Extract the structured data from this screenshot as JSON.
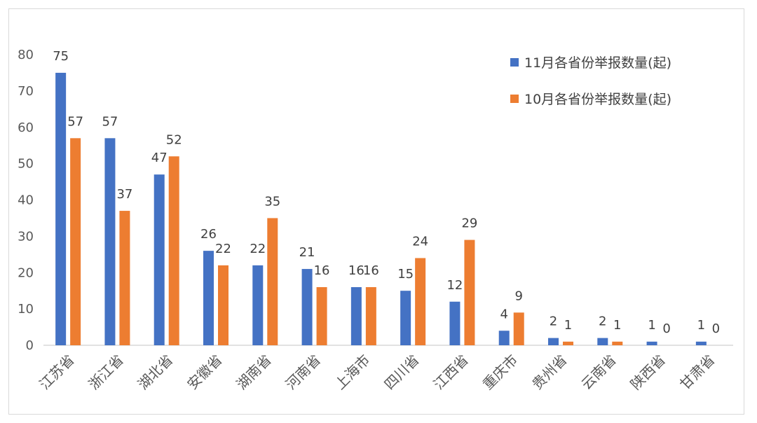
{
  "chart_data": {
    "type": "bar",
    "categories": [
      "江苏省",
      "浙江省",
      "湖北省",
      "安徽省",
      "湖南省",
      "河南省",
      "上海市",
      "四川省",
      "江西省",
      "重庆市",
      "贵州省",
      "云南省",
      "陕西省",
      "甘肃省"
    ],
    "series": [
      {
        "name": "11月各省份举报数量(起)",
        "color": "#4472C4",
        "values": [
          75,
          57,
          47,
          26,
          22,
          21,
          16,
          15,
          12,
          4,
          2,
          2,
          1,
          1
        ]
      },
      {
        "name": "10月各省份举报数量(起)",
        "color": "#ED7D31",
        "values": [
          57,
          37,
          52,
          22,
          35,
          16,
          16,
          24,
          29,
          9,
          1,
          1,
          0,
          0
        ]
      }
    ],
    "yticks": [
      0,
      10,
      20,
      30,
      40,
      50,
      60,
      70,
      80
    ],
    "ylim": [
      0,
      80
    ],
    "grid": false,
    "legend_position": "top-right",
    "data_labels": true
  }
}
